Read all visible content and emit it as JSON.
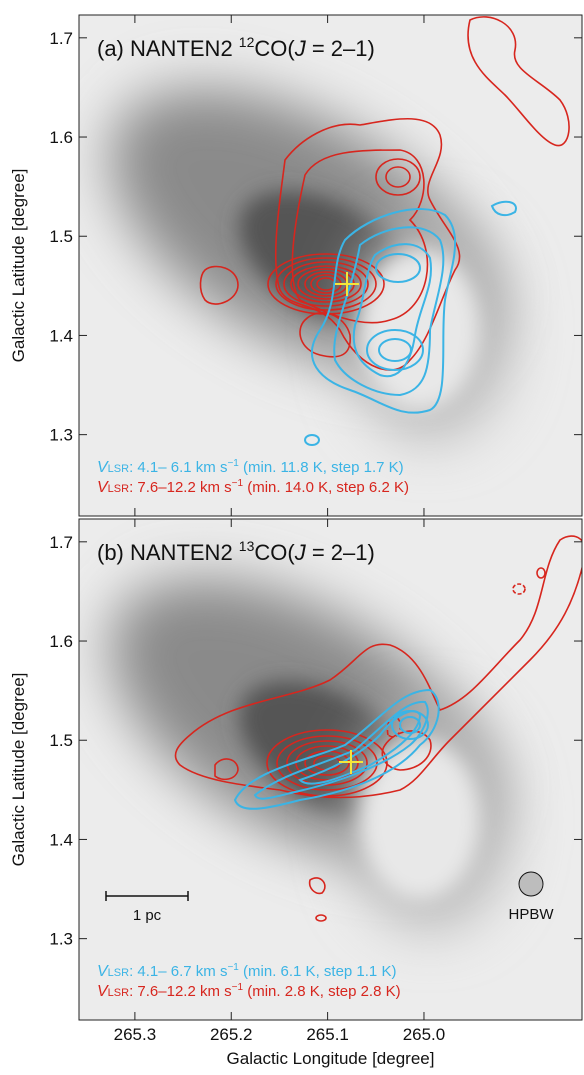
{
  "chart_data": [
    {
      "type": "contour",
      "title_parts": [
        "(a) NANTEN2 ",
        "12",
        "CO(",
        "J",
        " = 2–1)"
      ],
      "ylabel": "Galactic Latitude [degree]",
      "xlim": [
        265.358,
        264.836
      ],
      "ylim": [
        1.218,
        1.723
      ],
      "yticks": [
        1.3,
        1.4,
        1.5,
        1.6,
        1.7
      ],
      "series": [
        {
          "name_parts": [
            "V",
            "LSR",
            ": 4.1– 6.1 km s",
            "−1",
            " (min. 11.8 K, step 1.7 K)"
          ],
          "color": "#3bb4e5"
        },
        {
          "name_parts": [
            "V",
            "LSR",
            ": 7.6–12.2 km s",
            "−1",
            " (min. 14.0 K, step 6.2 K)"
          ],
          "color": "#d7261e"
        }
      ]
    },
    {
      "type": "contour",
      "title_parts": [
        "(b) NANTEN2 ",
        "13",
        "CO(",
        "J",
        " = 2–1)"
      ],
      "ylabel": "Galactic Latitude [degree]",
      "xlabel": "Galactic Longitude [degree]",
      "xlim": [
        265.358,
        264.836
      ],
      "ylim": [
        1.218,
        1.723
      ],
      "xticks": [
        265.3,
        265.2,
        265.1,
        {
          "value": 265,
          "label": "265.0"
        }
      ],
      "yticks": [
        1.3,
        1.4,
        1.5,
        1.6,
        1.7
      ],
      "series": [
        {
          "name_parts": [
            "V",
            "LSR",
            ": 4.1– 6.7 km s",
            "−1",
            " (min. 6.1 K, step 1.1 K)"
          ],
          "color": "#3bb4e5"
        },
        {
          "name_parts": [
            "V",
            "LSR",
            ": 7.6–12.2 km s",
            "−1",
            " (min. 2.8 K, step 2.8 K)"
          ],
          "color": "#d7261e"
        }
      ],
      "scale_bar": "1 pc",
      "beam": "HPBW"
    }
  ]
}
